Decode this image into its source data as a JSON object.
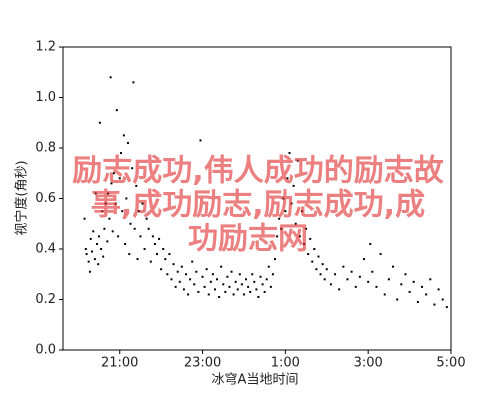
{
  "chart_data": {
    "type": "scatter",
    "x_label": "冰穹A当地时间",
    "y_label": "视宁度(角秒)",
    "color": "#000000",
    "xlim": [
      19.63,
      29
    ],
    "xticks": [
      {
        "value": 21,
        "label": "21:00"
      },
      {
        "value": 23,
        "label": "23:00"
      },
      {
        "value": 25,
        "label": "1:00"
      },
      {
        "value": 27,
        "label": "3:00"
      },
      {
        "value": 29,
        "label": "5:00"
      }
    ],
    "ylim": [
      0,
      1.2
    ],
    "yticks": [
      {
        "value": 0,
        "label": "0.0"
      },
      {
        "value": 0.2,
        "label": "0.2"
      },
      {
        "value": 0.4,
        "label": "0.4"
      },
      {
        "value": 0.6,
        "label": "0.6"
      },
      {
        "value": 0.8,
        "label": "0.8"
      },
      {
        "value": 1.0,
        "label": "1.0"
      },
      {
        "value": 1.2,
        "label": "1.2"
      }
    ],
    "x": [
      20.15,
      20.18,
      20.2,
      20.25,
      20.28,
      20.3,
      20.33,
      20.36,
      20.4,
      20.42,
      20.45,
      20.48,
      20.5,
      20.52,
      20.55,
      20.58,
      20.6,
      20.63,
      20.66,
      20.7,
      20.72,
      20.75,
      20.78,
      20.8,
      20.83,
      20.86,
      20.9,
      20.93,
      20.96,
      21.0,
      21.03,
      21.06,
      21.1,
      21.13,
      21.16,
      21.2,
      21.23,
      21.26,
      21.3,
      21.33,
      21.36,
      21.4,
      21.43,
      21.46,
      21.5,
      21.55,
      21.6,
      21.65,
      21.7,
      21.75,
      21.8,
      21.85,
      21.9,
      21.95,
      22.0,
      22.05,
      22.1,
      22.15,
      22.2,
      22.25,
      22.3,
      22.35,
      22.4,
      22.45,
      22.5,
      22.55,
      22.6,
      22.65,
      22.7,
      22.75,
      22.8,
      22.85,
      22.9,
      22.95,
      23.0,
      23.05,
      23.1,
      23.15,
      23.2,
      23.25,
      23.3,
      23.35,
      23.4,
      23.45,
      23.5,
      23.55,
      23.6,
      23.65,
      23.7,
      23.75,
      23.8,
      23.85,
      23.9,
      23.95,
      24.0,
      24.05,
      24.1,
      24.15,
      24.2,
      24.25,
      24.3,
      24.35,
      24.4,
      24.45,
      24.5,
      24.55,
      24.6,
      24.65,
      24.7,
      24.75,
      24.8,
      24.85,
      24.9,
      24.95,
      25.0,
      25.05,
      25.1,
      25.15,
      25.2,
      25.25,
      25.3,
      25.35,
      25.4,
      25.45,
      25.5,
      25.55,
      25.6,
      25.65,
      25.7,
      25.75,
      25.8,
      25.85,
      25.9,
      25.95,
      26.0,
      26.1,
      26.2,
      26.3,
      26.4,
      26.5,
      26.6,
      26.7,
      26.8,
      26.9,
      27.0,
      27.05,
      27.1,
      27.2,
      27.3,
      27.4,
      27.5,
      27.6,
      27.7,
      27.8,
      27.9,
      28.0,
      28.1,
      28.2,
      28.3,
      28.4,
      28.5,
      28.6,
      28.7,
      28.8,
      28.9
    ],
    "values": [
      0.52,
      0.4,
      0.38,
      0.35,
      0.31,
      0.44,
      0.39,
      0.47,
      0.36,
      0.62,
      0.42,
      0.34,
      0.45,
      0.9,
      0.4,
      0.55,
      0.37,
      0.48,
      0.58,
      0.43,
      0.62,
      0.52,
      1.08,
      0.66,
      0.47,
      0.7,
      0.58,
      0.95,
      0.45,
      0.68,
      0.78,
      0.55,
      0.85,
      0.42,
      0.6,
      0.82,
      0.38,
      0.5,
      0.72,
      1.06,
      0.48,
      0.65,
      0.36,
      0.55,
      0.45,
      0.58,
      0.4,
      0.52,
      0.48,
      0.35,
      0.45,
      0.42,
      0.38,
      0.44,
      0.32,
      0.4,
      0.36,
      0.3,
      0.38,
      0.28,
      0.34,
      0.25,
      0.31,
      0.27,
      0.33,
      0.24,
      0.3,
      0.22,
      0.28,
      0.35,
      0.26,
      0.31,
      0.23,
      0.83,
      0.29,
      0.25,
      0.32,
      0.22,
      0.27,
      0.3,
      0.24,
      0.28,
      0.21,
      0.33,
      0.26,
      0.23,
      0.29,
      0.25,
      0.31,
      0.22,
      0.27,
      0.24,
      0.3,
      0.26,
      0.22,
      0.28,
      0.25,
      0.23,
      0.3,
      0.27,
      0.24,
      0.21,
      0.29,
      0.26,
      0.23,
      0.28,
      0.33,
      0.25,
      0.3,
      0.36,
      0.45,
      0.52,
      0.48,
      0.6,
      0.55,
      0.68,
      0.78,
      0.58,
      0.65,
      0.5,
      0.75,
      0.45,
      0.55,
      0.42,
      0.48,
      0.38,
      0.44,
      0.35,
      0.4,
      0.32,
      0.37,
      0.3,
      0.34,
      0.28,
      0.32,
      0.26,
      0.3,
      0.24,
      0.33,
      0.28,
      0.31,
      0.25,
      0.29,
      0.36,
      0.27,
      0.42,
      0.31,
      0.25,
      0.38,
      0.22,
      0.28,
      0.33,
      0.2,
      0.26,
      0.3,
      0.23,
      0.27,
      0.19,
      0.25,
      0.22,
      0.28,
      0.18,
      0.24,
      0.2,
      0.17
    ],
    "watermark": [
      "励志成功,伟人成功的励志故",
      "事,成功励志,励志成功,成",
      "功励志网"
    ]
  }
}
